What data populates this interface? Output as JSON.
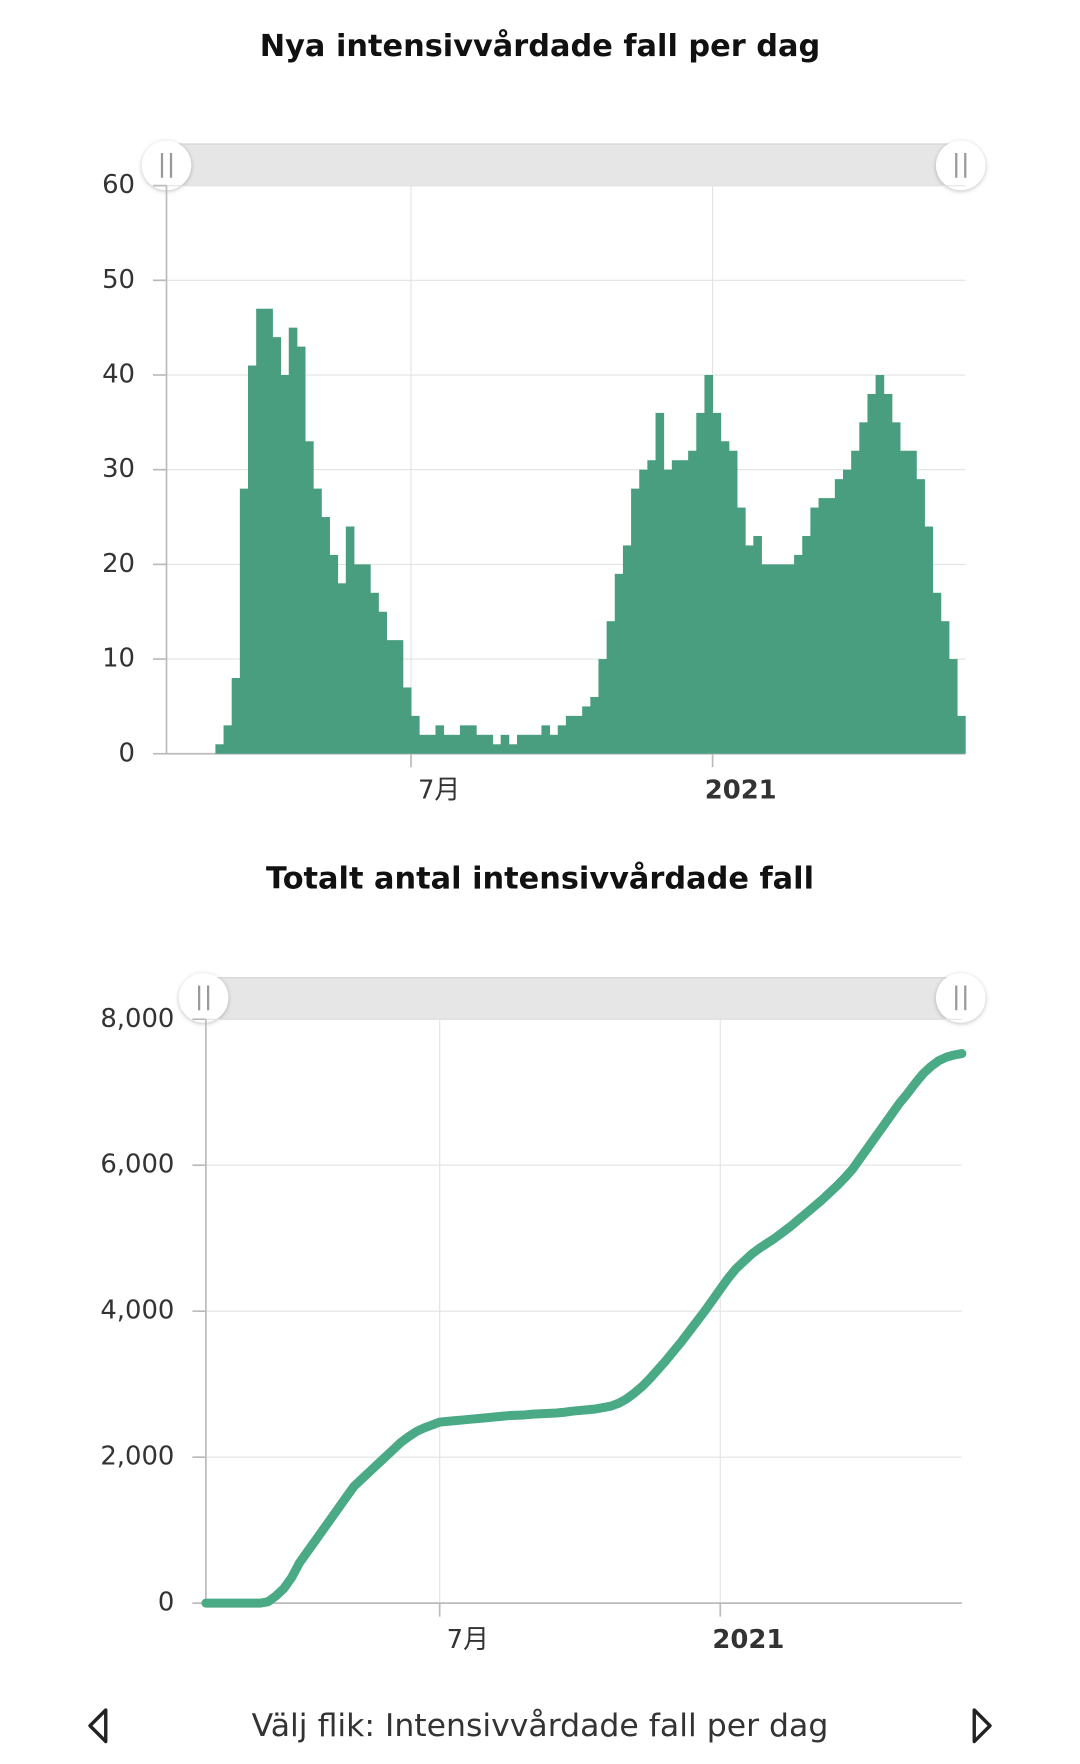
{
  "chart_data": [
    {
      "type": "bar",
      "title": "Nya intensivvårdade fall per dag",
      "categories": [
        null,
        null,
        null,
        null,
        null,
        null,
        null,
        null,
        null,
        null,
        null,
        null,
        null,
        null,
        null,
        null,
        null,
        null,
        null,
        null,
        null,
        null,
        null,
        null,
        null,
        null,
        null,
        null,
        null,
        null,
        "7月",
        null,
        null,
        null,
        null,
        null,
        null,
        null,
        null,
        null,
        null,
        null,
        null,
        null,
        null,
        null,
        null,
        null,
        null,
        null,
        null,
        null,
        null,
        null,
        null,
        null,
        null,
        null,
        null,
        null,
        null,
        null,
        null,
        null,
        null,
        null,
        null,
        "2021",
        null,
        null,
        null,
        null,
        null,
        null,
        null,
        null,
        null,
        null,
        null,
        null,
        null,
        null,
        null,
        null,
        null,
        null,
        null,
        null,
        null,
        null,
        null,
        null,
        null,
        null,
        null,
        null,
        null,
        null
      ],
      "values": [
        0,
        0,
        0,
        0,
        0,
        0,
        1,
        3,
        8,
        28,
        41,
        47,
        47,
        44,
        40,
        45,
        43,
        33,
        28,
        25,
        21,
        18,
        24,
        20,
        20,
        17,
        15,
        12,
        12,
        7,
        4,
        2,
        2,
        3,
        2,
        2,
        3,
        3,
        2,
        2,
        1,
        2,
        1,
        2,
        2,
        2,
        3,
        2,
        3,
        4,
        4,
        5,
        6,
        10,
        14,
        19,
        22,
        28,
        30,
        31,
        36,
        30,
        31,
        31,
        32,
        36,
        40,
        36,
        33,
        32,
        26,
        22,
        23,
        20,
        20,
        20,
        20,
        21,
        23,
        26,
        27,
        27,
        29,
        30,
        32,
        35,
        38,
        40,
        38,
        35,
        32,
        32,
        29,
        24,
        17,
        14,
        10,
        4
      ],
      "color": "#4a9e80",
      "ylim": [
        0,
        60
      ],
      "yticks": [
        0,
        10,
        20,
        30,
        40,
        50,
        60
      ],
      "grid": true
    },
    {
      "type": "line",
      "title": "Totalt antal intensivvårdade fall",
      "categories": [
        null,
        null,
        null,
        null,
        null,
        null,
        null,
        null,
        null,
        null,
        null,
        null,
        null,
        null,
        null,
        null,
        null,
        null,
        null,
        null,
        null,
        null,
        null,
        null,
        null,
        null,
        null,
        null,
        null,
        null,
        "7月",
        null,
        null,
        null,
        null,
        null,
        null,
        null,
        null,
        null,
        null,
        null,
        null,
        null,
        null,
        null,
        null,
        null,
        null,
        null,
        null,
        null,
        null,
        null,
        null,
        null,
        null,
        null,
        null,
        null,
        null,
        null,
        null,
        null,
        null,
        null,
        "2021",
        null,
        null,
        null,
        null,
        null,
        null,
        null,
        null,
        null,
        null,
        null,
        null,
        null,
        null,
        null,
        null,
        null,
        null,
        null,
        null,
        null,
        null,
        null,
        null,
        null,
        null,
        null,
        null,
        null,
        null,
        null
      ],
      "values": [
        0,
        0,
        0,
        0,
        0,
        0,
        0,
        0,
        20,
        100,
        200,
        350,
        550,
        700,
        850,
        1000,
        1150,
        1300,
        1450,
        1600,
        1700,
        1800,
        1900,
        2000,
        2100,
        2200,
        2280,
        2350,
        2400,
        2440,
        2480,
        2490,
        2500,
        2510,
        2520,
        2530,
        2540,
        2550,
        2560,
        2570,
        2575,
        2580,
        2590,
        2595,
        2600,
        2605,
        2615,
        2630,
        2640,
        2650,
        2660,
        2680,
        2700,
        2740,
        2800,
        2880,
        2970,
        3080,
        3200,
        3320,
        3450,
        3580,
        3720,
        3860,
        4000,
        4150,
        4300,
        4450,
        4580,
        4680,
        4780,
        4860,
        4930,
        5000,
        5080,
        5160,
        5250,
        5340,
        5430,
        5520,
        5620,
        5720,
        5830,
        5950,
        6100,
        6250,
        6400,
        6550,
        6700,
        6850,
        6980,
        7120,
        7250,
        7350,
        7430,
        7480,
        7510,
        7530
      ],
      "color": "#4aaa85",
      "ylim": [
        0,
        8000
      ],
      "yticks": [
        0,
        {
          "value": 2000,
          "label": "2,000"
        },
        {
          "value": 4000,
          "label": "4,000"
        },
        {
          "value": 6000,
          "label": "6,000"
        },
        {
          "value": 8000,
          "label": "8,000"
        }
      ],
      "grid": true
    }
  ],
  "footer": {
    "text": "Välj flik: Intensivvårdade fall per dag"
  }
}
